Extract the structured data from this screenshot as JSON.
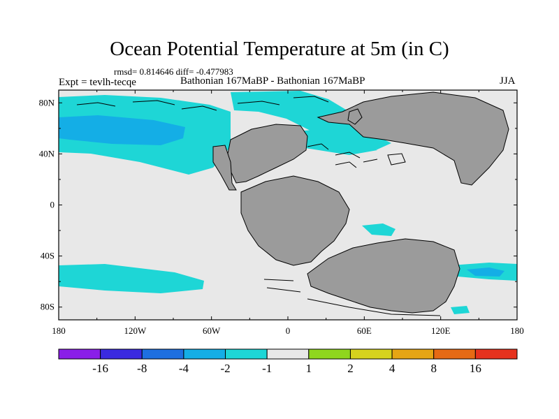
{
  "figure": {
    "title": "Ocean Potential Temperature at 5m (in C)",
    "stats": "rmsd= 0.814646 diff= -0.477983",
    "expt": "Expt = tevlh-tecqe",
    "subtitle": "Bathonian 167MaBP - Bathonian 167MaBP",
    "season": "JJA"
  },
  "axes": {
    "lat_ticks": [
      "80N",
      "40N",
      "0",
      "40S",
      "80S"
    ],
    "lat_values": [
      80,
      40,
      0,
      -40,
      -80
    ],
    "lon_ticks": [
      "180",
      "120W",
      "60W",
      "0",
      "60E",
      "120E",
      "180"
    ],
    "lon_values": [
      -180,
      -120,
      -60,
      0,
      60,
      120,
      180
    ]
  },
  "colorbar": {
    "labels": [
      "-16",
      "-8",
      "-4",
      "-2",
      "-1",
      "1",
      "2",
      "4",
      "8",
      "16"
    ],
    "colors": [
      "#8a1ee8",
      "#3a2ae0",
      "#1e6fe0",
      "#14aee6",
      "#1ed6d6",
      "#e8e8e8",
      "#8fd61e",
      "#d6d21e",
      "#e6a514",
      "#e66a14",
      "#e6321e"
    ]
  },
  "colors": {
    "land": "#9b9b9b",
    "ocean": "#e8e8e8",
    "cool_light": "#1ed6d6",
    "cool_mid": "#14aee6"
  }
}
